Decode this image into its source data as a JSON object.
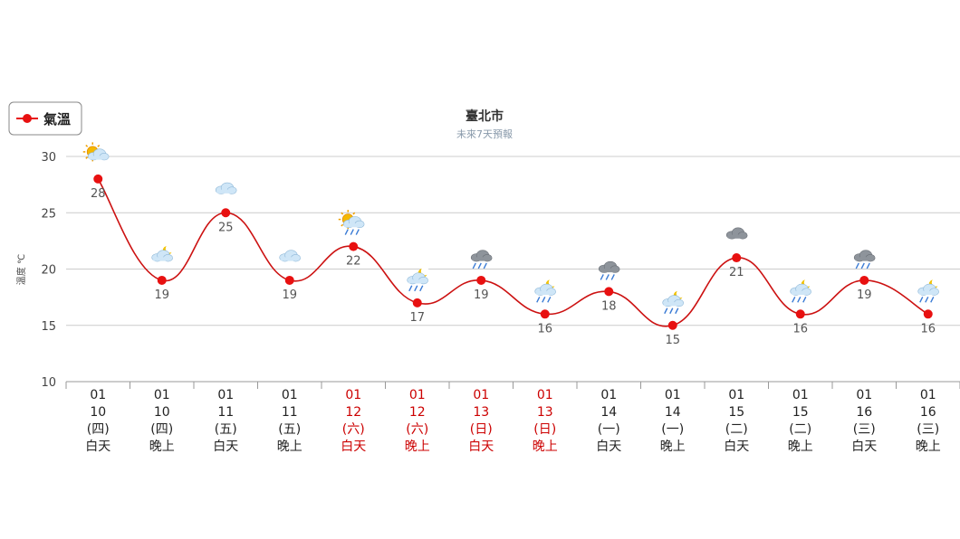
{
  "legend": {
    "label": "氣溫",
    "color": "#e81010"
  },
  "chart_data": {
    "type": "line",
    "title": "臺北市",
    "subtitle": "未來7天預報",
    "ylabel": "溫度 ℃",
    "ylim": [
      10,
      30
    ],
    "yticks": [
      10,
      15,
      20,
      25,
      30
    ],
    "series": [
      {
        "name": "氣溫",
        "values": [
          28,
          19,
          25,
          19,
          22,
          17,
          19,
          16,
          18,
          15,
          21,
          16,
          19,
          16
        ]
      }
    ],
    "categories": [
      {
        "month": "01",
        "day": "10",
        "weekday": "(四)",
        "period": "白天",
        "weekend": false,
        "weather": "sunny-cloud"
      },
      {
        "month": "01",
        "day": "10",
        "weekday": "(四)",
        "period": "晚上",
        "weekend": false,
        "weather": "moon-cloud"
      },
      {
        "month": "01",
        "day": "11",
        "weekday": "(五)",
        "period": "白天",
        "weekend": false,
        "weather": "cloudy"
      },
      {
        "month": "01",
        "day": "11",
        "weekday": "(五)",
        "period": "晚上",
        "weekend": false,
        "weather": "cloudy"
      },
      {
        "month": "01",
        "day": "12",
        "weekday": "(六)",
        "period": "白天",
        "weekend": true,
        "weather": "sun-cloud-rain"
      },
      {
        "month": "01",
        "day": "12",
        "weekday": "(六)",
        "period": "晚上",
        "weekend": true,
        "weather": "moon-cloud-rain"
      },
      {
        "month": "01",
        "day": "13",
        "weekday": "(日)",
        "period": "白天",
        "weekend": true,
        "weather": "dark-cloud-rain"
      },
      {
        "month": "01",
        "day": "13",
        "weekday": "(日)",
        "period": "晚上",
        "weekend": true,
        "weather": "moon-cloud-rain"
      },
      {
        "month": "01",
        "day": "14",
        "weekday": "(一)",
        "period": "白天",
        "weekend": false,
        "weather": "dark-cloud-rain"
      },
      {
        "month": "01",
        "day": "14",
        "weekday": "(一)",
        "period": "晚上",
        "weekend": false,
        "weather": "moon-cloud-rain"
      },
      {
        "month": "01",
        "day": "15",
        "weekday": "(二)",
        "period": "白天",
        "weekend": false,
        "weather": "dark-cloud"
      },
      {
        "month": "01",
        "day": "15",
        "weekday": "(二)",
        "period": "晚上",
        "weekend": false,
        "weather": "moon-cloud-rain"
      },
      {
        "month": "01",
        "day": "16",
        "weekday": "(三)",
        "period": "白天",
        "weekend": false,
        "weather": "dark-cloud-rain"
      },
      {
        "month": "01",
        "day": "16",
        "weekday": "(三)",
        "period": "晚上",
        "weekend": false,
        "weather": "moon-cloud-rain"
      }
    ]
  }
}
